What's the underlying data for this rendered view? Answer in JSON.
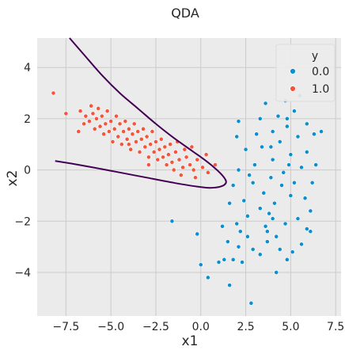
{
  "chart_data": {
    "type": "scatter",
    "title": "QDA",
    "xlabel": "x1",
    "ylabel": "x2",
    "xlim": [
      -9.1,
      7.8
    ],
    "ylim": [
      -5.7,
      5.15
    ],
    "x_ticks": [
      -7.5,
      -5.0,
      -2.5,
      0.0,
      2.5,
      5.0,
      7.5
    ],
    "x_tick_labels": [
      "−7.5",
      "−5.0",
      "−2.5",
      "0.0",
      "2.5",
      "5.0",
      "7.5"
    ],
    "y_ticks": [
      -4,
      -2,
      0,
      2,
      4
    ],
    "y_tick_labels": [
      "−4",
      "−2",
      "0",
      "2",
      "4"
    ],
    "grid": true,
    "legend": {
      "title": "y",
      "placement": "top-right",
      "entries": [
        "0.0",
        "1.0"
      ]
    },
    "colors": {
      "background": "#ebebeb",
      "series_0": "#0b8fcf",
      "series_1": "#f4553b",
      "boundary": "#440154",
      "grid": "#cbcbcb"
    },
    "series": [
      {
        "name": "0.0",
        "points": [
          [
            1.6,
            -4.5
          ],
          [
            2.8,
            -5.2
          ],
          [
            0.4,
            -4.2
          ],
          [
            1.0,
            -3.6
          ],
          [
            1.3,
            -3.5
          ],
          [
            0.0,
            -3.7
          ],
          [
            2.1,
            -3.0
          ],
          [
            3.3,
            -3.3
          ],
          [
            4.8,
            -3.5
          ],
          [
            1.8,
            -3.5
          ],
          [
            2.6,
            -2.6
          ],
          [
            2.9,
            -3.1
          ],
          [
            3.7,
            -2.8
          ],
          [
            4.4,
            -3.1
          ],
          [
            5.1,
            -3.2
          ],
          [
            5.9,
            -2.3
          ],
          [
            6.1,
            -2.4
          ],
          [
            4.2,
            -2.6
          ],
          [
            2.2,
            -2.4
          ],
          [
            3.6,
            -2.2
          ],
          [
            -0.2,
            -2.5
          ],
          [
            -1.6,
            -2.0
          ],
          [
            1.2,
            -2.2
          ],
          [
            2.0,
            -2.1
          ],
          [
            3.8,
            -1.7
          ],
          [
            4.7,
            -2.1
          ],
          [
            5.4,
            -1.9
          ],
          [
            6.1,
            -1.6
          ],
          [
            2.6,
            -1.8
          ],
          [
            3.3,
            -1.5
          ],
          [
            4.1,
            -1.3
          ],
          [
            5.0,
            -1.0
          ],
          [
            5.8,
            -1.1
          ],
          [
            1.6,
            -1.3
          ],
          [
            2.4,
            -1.2
          ],
          [
            3.5,
            -0.9
          ],
          [
            4.5,
            -0.6
          ],
          [
            5.2,
            -0.5
          ],
          [
            6.2,
            -0.5
          ],
          [
            1.8,
            -0.6
          ],
          [
            2.9,
            -0.5
          ],
          [
            3.9,
            -0.3
          ],
          [
            4.6,
            -0.1
          ],
          [
            5.6,
            0.1
          ],
          [
            6.4,
            0.2
          ],
          [
            2.1,
            0.0
          ],
          [
            3.0,
            0.2
          ],
          [
            4.0,
            0.4
          ],
          [
            5.0,
            0.6
          ],
          [
            5.9,
            0.7
          ],
          [
            2.5,
            0.8
          ],
          [
            3.4,
            0.9
          ],
          [
            4.4,
            1.1
          ],
          [
            5.4,
            1.3
          ],
          [
            6.3,
            1.4
          ],
          [
            3.1,
            1.4
          ],
          [
            4.0,
            1.5
          ],
          [
            4.8,
            1.7
          ],
          [
            5.9,
            1.8
          ],
          [
            2.0,
            1.3
          ],
          [
            3.3,
            2.0
          ],
          [
            4.3,
            2.1
          ],
          [
            5.2,
            2.3
          ],
          [
            3.6,
            2.6
          ],
          [
            4.7,
            2.7
          ],
          [
            5.5,
            2.9
          ],
          [
            2.1,
            1.9
          ],
          [
            6.7,
            1.5
          ],
          [
            4.9,
            0.2
          ],
          [
            3.7,
            -2.4
          ],
          [
            2.3,
            -3.6
          ],
          [
            4.2,
            -4.0
          ],
          [
            5.6,
            -2.9
          ],
          [
            1.5,
            -2.8
          ],
          [
            4.0,
            -1.9
          ],
          [
            2.7,
            -0.2
          ],
          [
            4.8,
            2.0
          ],
          [
            3.9,
            0.9
          ]
        ]
      },
      {
        "name": "1.0",
        "points": [
          [
            -8.2,
            3.0
          ],
          [
            -7.5,
            2.2
          ],
          [
            -6.7,
            2.3
          ],
          [
            -6.4,
            2.1
          ],
          [
            -6.2,
            1.9
          ],
          [
            -6.0,
            2.2
          ],
          [
            -5.8,
            2.0
          ],
          [
            -5.6,
            1.7
          ],
          [
            -5.5,
            2.1
          ],
          [
            -5.3,
            1.8
          ],
          [
            -5.1,
            1.5
          ],
          [
            -5.0,
            1.9
          ],
          [
            -4.8,
            1.6
          ],
          [
            -4.6,
            1.3
          ],
          [
            -4.5,
            1.8
          ],
          [
            -4.3,
            1.5
          ],
          [
            -4.1,
            1.2
          ],
          [
            -4.0,
            1.6
          ],
          [
            -3.8,
            1.4
          ],
          [
            -3.6,
            1.1
          ],
          [
            -3.5,
            1.5
          ],
          [
            -3.3,
            1.2
          ],
          [
            -3.1,
            0.9
          ],
          [
            -3.0,
            1.3
          ],
          [
            -2.8,
            1.0
          ],
          [
            -2.6,
            0.7
          ],
          [
            -2.5,
            1.1
          ],
          [
            -2.3,
            0.8
          ],
          [
            -2.1,
            0.5
          ],
          [
            -2.0,
            0.9
          ],
          [
            -1.8,
            0.6
          ],
          [
            -1.6,
            0.3
          ],
          [
            -1.4,
            0.7
          ],
          [
            -1.2,
            0.4
          ],
          [
            -1.0,
            0.1
          ],
          [
            -0.8,
            0.5
          ],
          [
            -0.6,
            0.2
          ],
          [
            -0.4,
            0.0
          ],
          [
            -0.2,
            0.4
          ],
          [
            0.1,
            0.1
          ],
          [
            0.4,
            -0.1
          ],
          [
            0.8,
            0.2
          ],
          [
            -5.9,
            1.6
          ],
          [
            -5.4,
            1.4
          ],
          [
            -4.9,
            1.1
          ],
          [
            -4.4,
            1.0
          ],
          [
            -3.9,
            0.8
          ],
          [
            -3.4,
            0.7
          ],
          [
            -2.9,
            0.5
          ],
          [
            -2.4,
            0.4
          ],
          [
            -1.9,
            0.2
          ],
          [
            -1.5,
            0.0
          ],
          [
            -6.5,
            1.8
          ],
          [
            -5.7,
            2.4
          ],
          [
            -4.7,
            2.1
          ],
          [
            -3.7,
            1.8
          ],
          [
            -2.7,
            1.5
          ],
          [
            -1.7,
            1.0
          ],
          [
            -0.9,
            0.8
          ],
          [
            -4.2,
            1.9
          ],
          [
            -3.2,
            1.6
          ],
          [
            -2.2,
            1.2
          ],
          [
            -1.3,
            1.1
          ],
          [
            -0.5,
            0.9
          ],
          [
            -6.8,
            1.5
          ],
          [
            -5.2,
            2.3
          ],
          [
            -4.0,
            1.0
          ],
          [
            -2.9,
            0.2
          ],
          [
            -1.1,
            -0.2
          ],
          [
            0.3,
            0.6
          ],
          [
            -0.3,
            -0.3
          ],
          [
            -6.1,
            2.5
          ]
        ]
      }
    ],
    "decision_boundary": {
      "label": "",
      "points": [
        [
          -7.3,
          5.15
        ],
        [
          -6.5,
          4.5
        ],
        [
          -5.5,
          3.7
        ],
        [
          -4.5,
          3.0
        ],
        [
          -3.5,
          2.4
        ],
        [
          -2.5,
          1.8
        ],
        [
          -1.5,
          1.25
        ],
        [
          -0.5,
          0.75
        ],
        [
          0.3,
          0.35
        ],
        [
          0.9,
          0.0
        ],
        [
          1.3,
          -0.3
        ],
        [
          1.4,
          -0.5
        ],
        [
          1.1,
          -0.65
        ],
        [
          0.5,
          -0.7
        ],
        [
          -0.2,
          -0.65
        ],
        [
          -1.5,
          -0.5
        ],
        [
          -3.0,
          -0.3
        ],
        [
          -4.5,
          -0.1
        ],
        [
          -6.0,
          0.1
        ],
        [
          -7.2,
          0.25
        ],
        [
          -8.1,
          0.35
        ]
      ]
    }
  }
}
